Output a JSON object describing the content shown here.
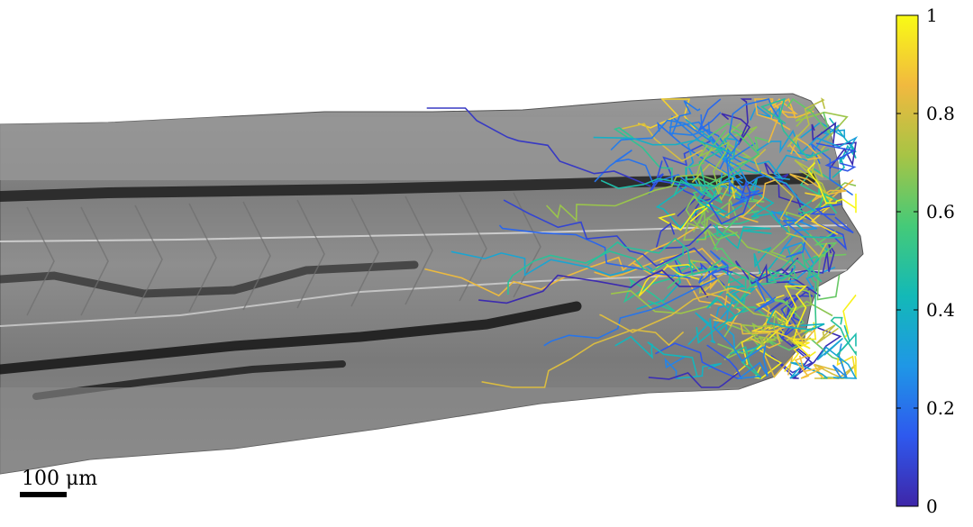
{
  "figure": {
    "background": "#ffffff",
    "tissue_fill": "#8a8a8a",
    "scale_bar": {
      "label": "100 μm"
    },
    "colorbar": {
      "min": 0,
      "max": 1,
      "ticks": [
        {
          "value": 0,
          "label": "0"
        },
        {
          "value": 0.2,
          "label": "0.2"
        },
        {
          "value": 0.4,
          "label": "0.4"
        },
        {
          "value": 0.6,
          "label": "0.6"
        },
        {
          "value": 0.8,
          "label": "0.8"
        },
        {
          "value": 1,
          "label": "1"
        }
      ],
      "colormap": [
        "#3e26a8",
        "#2e59ee",
        "#1f97e6",
        "#13b9b7",
        "#45ca78",
        "#a7c445",
        "#f1b93f",
        "#f9fb15"
      ]
    }
  }
}
